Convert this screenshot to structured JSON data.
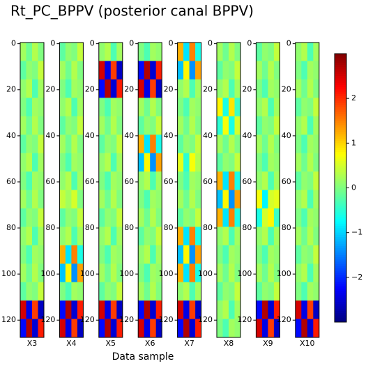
{
  "chart_data": {
    "type": "heatmap",
    "title": "Rt_PC_BPPV (posterior canal BPPV)",
    "x_label": "Data sample",
    "colormap": "jet",
    "ylim": [
      -0.5,
      127.5
    ],
    "yticks": [
      0,
      20,
      40,
      60,
      80,
      100,
      120
    ],
    "clim": [
      -3,
      3
    ],
    "cticks": [
      {
        "value": -2,
        "label": "−2"
      },
      {
        "value": -1,
        "label": "−1"
      },
      0,
      1,
      2
    ],
    "panels": [
      {
        "label": "X3",
        "values": [
          [
            0.2,
            -0.1,
            0.3,
            0
          ],
          [
            -0.2,
            0.1,
            0,
            0.4
          ],
          [
            0.1,
            0.3,
            -0.3,
            0.2
          ],
          [
            0,
            -0.3,
            0.2,
            0.1
          ],
          [
            0.2,
            -0.1,
            0.3,
            0
          ],
          [
            -0.2,
            0.1,
            0,
            0.4
          ],
          [
            0.1,
            0.3,
            -0.3,
            0.2
          ],
          [
            0,
            -0.3,
            0.2,
            0.1
          ],
          [
            0.2,
            -0.1,
            0.3,
            0
          ],
          [
            -0.2,
            0.1,
            0,
            0.4
          ],
          [
            0.1,
            0.3,
            -0.3,
            0.2
          ],
          [
            0,
            -0.3,
            0.2,
            0.1
          ],
          [
            0.2,
            -0.1,
            0.3,
            0
          ],
          [
            -0.2,
            0.1,
            0,
            0.4
          ],
          [
            2.5,
            -2.4,
            1.9,
            -2.6
          ],
          [
            -2.2,
            2.7,
            -2.5,
            2.1
          ]
        ]
      },
      {
        "label": "X4",
        "values": [
          [
            -0.2,
            0.1,
            0,
            0.4
          ],
          [
            0.2,
            -0.1,
            0.3,
            0
          ],
          [
            0,
            -0.3,
            0.2,
            0.1
          ],
          [
            0.1,
            0.3,
            -0.3,
            0.2
          ],
          [
            -0.2,
            0.1,
            0,
            0.4
          ],
          [
            0.2,
            -0.1,
            0.3,
            0
          ],
          [
            0,
            -0.3,
            0.2,
            0.1
          ],
          [
            0.1,
            0.3,
            -0.3,
            0.2
          ],
          [
            0.4,
            0.2,
            0.5,
            0
          ],
          [
            -0.2,
            0.1,
            0,
            0.4
          ],
          [
            0.1,
            0.3,
            -0.3,
            0.2
          ],
          [
            1.2,
            -0.9,
            1.5,
            -0.6
          ],
          [
            -1.1,
            0.8,
            -1.4,
            1.3
          ],
          [
            0,
            -0.3,
            0.2,
            0.1
          ],
          [
            -2.2,
            2.7,
            -2.5,
            2.1
          ],
          [
            2.5,
            -2.4,
            1.9,
            -2.6
          ]
        ]
      },
      {
        "label": "X5",
        "values": [
          [
            0.1,
            0.3,
            -0.3,
            0.2
          ],
          [
            2.5,
            -2.4,
            1.9,
            -2.6
          ],
          [
            -2.2,
            2.7,
            -2.5,
            2.1
          ],
          [
            0,
            -0.3,
            0.2,
            0.1
          ],
          [
            0.2,
            -0.1,
            0.3,
            0
          ],
          [
            -0.2,
            0.1,
            0,
            0.4
          ],
          [
            0.1,
            0.3,
            -0.3,
            0.2
          ],
          [
            0,
            -0.3,
            0.2,
            0.1
          ],
          [
            0.2,
            -0.1,
            0.3,
            0
          ],
          [
            -0.2,
            0.1,
            0,
            0.4
          ],
          [
            0.1,
            0.3,
            -0.3,
            0.2
          ],
          [
            0,
            -0.3,
            0.2,
            0.1
          ],
          [
            0.2,
            -0.1,
            0.3,
            0
          ],
          [
            -0.2,
            0.1,
            0,
            0.4
          ],
          [
            2.5,
            -2.4,
            1.9,
            -2.6
          ],
          [
            -2.2,
            2.7,
            -2.5,
            2.1
          ]
        ]
      },
      {
        "label": "X6",
        "values": [
          [
            0,
            -0.3,
            0.2,
            0.1
          ],
          [
            -2.2,
            2.7,
            -2.5,
            2.1
          ],
          [
            2.5,
            -2.4,
            1.9,
            -2.6
          ],
          [
            0.2,
            -0.1,
            0.3,
            0
          ],
          [
            -0.2,
            0.1,
            0,
            0.4
          ],
          [
            1.2,
            -0.9,
            1.5,
            -0.6
          ],
          [
            -1.1,
            0.8,
            -1.4,
            1.3
          ],
          [
            0.1,
            0.3,
            -0.3,
            0.2
          ],
          [
            0,
            -0.3,
            0.2,
            0.1
          ],
          [
            0.2,
            -0.1,
            0.3,
            0
          ],
          [
            -0.2,
            0.1,
            0,
            0.4
          ],
          [
            0.1,
            0.3,
            -0.3,
            0.2
          ],
          [
            0,
            -0.3,
            0.2,
            0.1
          ],
          [
            0.2,
            -0.1,
            0.3,
            0
          ],
          [
            -2.2,
            2.7,
            -2.5,
            2.1
          ],
          [
            2.5,
            -2.4,
            1.9,
            -2.6
          ]
        ]
      },
      {
        "label": "X7",
        "values": [
          [
            1.2,
            -0.9,
            1.5,
            -0.6
          ],
          [
            -1.1,
            0.8,
            -1.4,
            1.3
          ],
          [
            0.1,
            0.3,
            -0.3,
            0.2
          ],
          [
            0,
            -0.3,
            0.2,
            0.1
          ],
          [
            0.2,
            -0.1,
            0.3,
            0
          ],
          [
            -0.2,
            0.1,
            0,
            0.4
          ],
          [
            0.6,
            -0.5,
            0.7,
            0.3
          ],
          [
            0,
            -0.3,
            0.2,
            0.1
          ],
          [
            0.2,
            -0.1,
            0.3,
            0
          ],
          [
            -0.2,
            0.1,
            0,
            0.4
          ],
          [
            1.2,
            -0.9,
            1.5,
            -0.6
          ],
          [
            -1.1,
            0.8,
            -1.4,
            1.3
          ],
          [
            1.2,
            -0.9,
            1.5,
            -0.6
          ],
          [
            0.1,
            0.3,
            -0.3,
            0.2
          ],
          [
            2.5,
            -2.4,
            1.9,
            -2.6
          ],
          [
            -2.2,
            2.7,
            -2.5,
            2.1
          ]
        ]
      },
      {
        "label": "X8",
        "values": [
          [
            0.2,
            -0.1,
            0.3,
            0
          ],
          [
            -0.2,
            0.1,
            0,
            0.4
          ],
          [
            0.1,
            0.3,
            -0.3,
            0.2
          ],
          [
            0.8,
            -0.6,
            0.9,
            -0.4
          ],
          [
            -0.5,
            0.7,
            -0.6,
            0.5
          ],
          [
            0.2,
            -0.1,
            0.3,
            0
          ],
          [
            -0.2,
            0.1,
            0,
            0.4
          ],
          [
            1.2,
            -0.9,
            1.5,
            -0.6
          ],
          [
            -1.1,
            0.8,
            -1.4,
            1.3
          ],
          [
            1.2,
            -0.9,
            1.5,
            -0.6
          ],
          [
            0.1,
            0.3,
            -0.3,
            0.2
          ],
          [
            0,
            -0.3,
            0.2,
            0.1
          ],
          [
            0.2,
            -0.1,
            0.3,
            0
          ],
          [
            -0.2,
            0.1,
            0,
            0.4
          ],
          [
            0.1,
            0.3,
            -0.3,
            0.2
          ],
          [
            0,
            -0.3,
            0.2,
            0.1
          ]
        ]
      },
      {
        "label": "X9",
        "values": [
          [
            -0.2,
            0.1,
            0,
            0.4
          ],
          [
            0.2,
            -0.1,
            0.3,
            0
          ],
          [
            0,
            -0.3,
            0.2,
            0.1
          ],
          [
            0.1,
            0.3,
            -0.3,
            0.2
          ],
          [
            -0.2,
            0.1,
            0,
            0.4
          ],
          [
            0.2,
            -0.1,
            0.3,
            0
          ],
          [
            0,
            -0.3,
            0.2,
            0.1
          ],
          [
            0.1,
            0.3,
            -0.3,
            0.2
          ],
          [
            0.7,
            -0.8,
            0.5,
            0.6
          ],
          [
            -0.6,
            0.5,
            0.8,
            -0.4
          ],
          [
            0.1,
            0.3,
            -0.3,
            0.2
          ],
          [
            0,
            -0.3,
            0.2,
            0.1
          ],
          [
            0.2,
            -0.1,
            0.3,
            0
          ],
          [
            -0.2,
            0.1,
            0,
            0.4
          ],
          [
            -2.2,
            2.7,
            -2.5,
            2.1
          ],
          [
            2.5,
            -2.4,
            1.9,
            -2.6
          ]
        ]
      },
      {
        "label": "X10",
        "values": [
          [
            0.1,
            0.3,
            -0.3,
            0.2
          ],
          [
            0,
            -0.3,
            0.2,
            0.1
          ],
          [
            0.2,
            -0.1,
            0.3,
            0
          ],
          [
            -0.2,
            0.1,
            0,
            0.4
          ],
          [
            0.1,
            0.3,
            -0.3,
            0.2
          ],
          [
            0,
            -0.3,
            0.2,
            0.1
          ],
          [
            0.2,
            -0.1,
            0.3,
            0
          ],
          [
            -0.2,
            0.1,
            0,
            0.4
          ],
          [
            0.1,
            0.3,
            -0.3,
            0.2
          ],
          [
            0,
            -0.3,
            0.2,
            0.1
          ],
          [
            0.2,
            -0.1,
            0.3,
            0
          ],
          [
            -0.2,
            0.1,
            0,
            0.4
          ],
          [
            0.1,
            0.3,
            -0.3,
            0.2
          ],
          [
            0,
            -0.3,
            0.2,
            0.1
          ],
          [
            2.5,
            -2.4,
            1.9,
            -2.6
          ],
          [
            -2.2,
            2.7,
            -2.5,
            2.1
          ]
        ]
      }
    ]
  }
}
